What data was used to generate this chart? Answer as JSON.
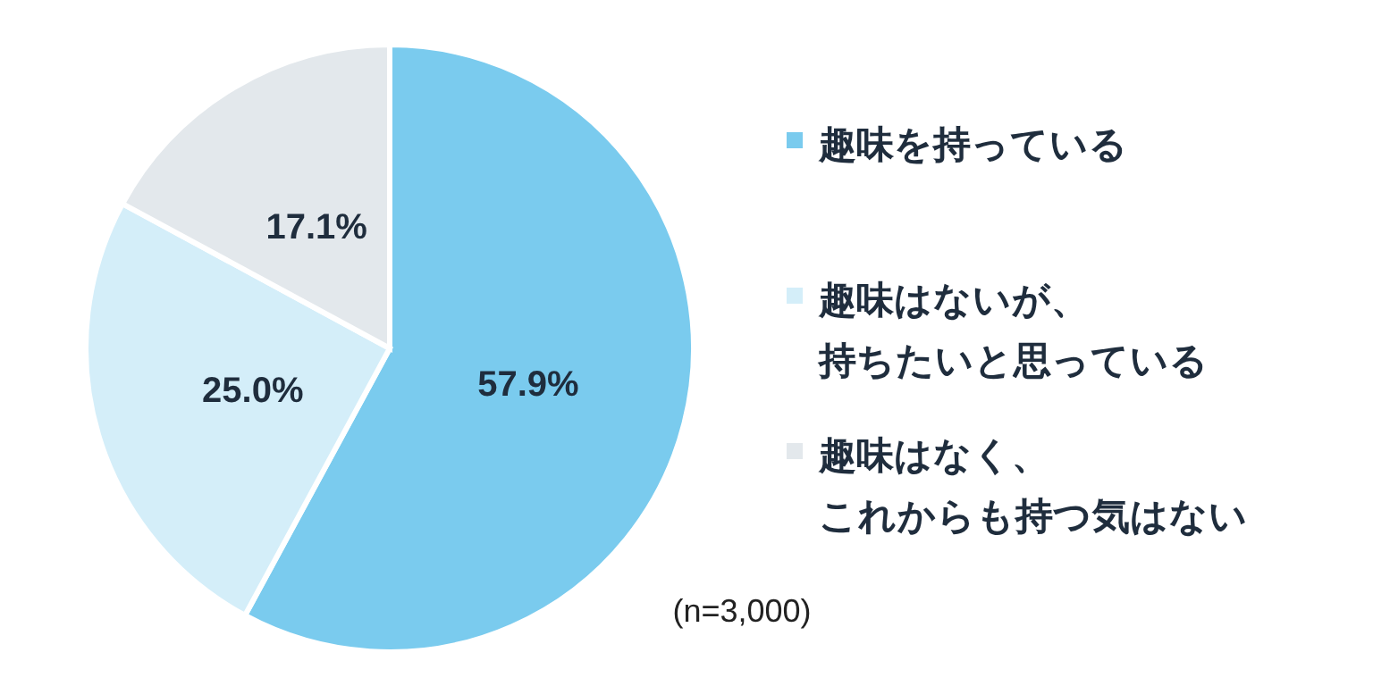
{
  "chart_data": {
    "type": "pie",
    "categories": [
      "趣味を持っている",
      "趣味はないが、持ちたいと思っている",
      "趣味はなく、これからも持つ気はない"
    ],
    "values": [
      57.9,
      25.0,
      17.1
    ],
    "colors": [
      "#7acbee",
      "#d4eef9",
      "#e3e8ec"
    ],
    "value_labels": [
      "57.9%",
      "25.0%",
      "17.1%"
    ],
    "legend": "right",
    "annotations": [
      "(n=3,000)"
    ]
  }
}
